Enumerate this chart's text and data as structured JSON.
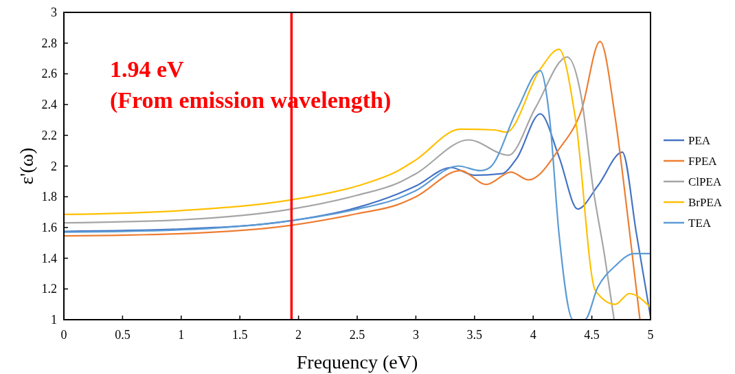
{
  "chart_data": {
    "type": "line",
    "xlabel": "Frequency (eV)",
    "ylabel": "ε'(ω)",
    "xlim": [
      0,
      5
    ],
    "ylim": [
      1,
      3
    ],
    "xticks": [
      0,
      0.5,
      1,
      1.5,
      2,
      2.5,
      3,
      3.5,
      4,
      4.5,
      5
    ],
    "yticks": [
      1,
      1.2,
      1.4,
      1.6,
      1.8,
      2,
      2.2,
      2.4,
      2.6,
      2.8,
      3
    ],
    "grid": false,
    "legend": "right",
    "marker": "none",
    "line_style": "solid",
    "series": [
      {
        "name": "PEA",
        "color": "#4472c4",
        "x": [
          0,
          1,
          1.94,
          2.5,
          2.85,
          3,
          3.3,
          3.5,
          3.73,
          3.86,
          4.06,
          4.22,
          4.38,
          4.55,
          4.76,
          4.88,
          5
        ],
        "values": [
          1.575,
          1.59,
          1.645,
          1.73,
          1.82,
          1.87,
          1.99,
          1.94,
          1.95,
          2.05,
          2.34,
          2.06,
          1.72,
          1.87,
          2.09,
          1.56,
          1.02
        ]
      },
      {
        "name": "FPEA",
        "color": "#ed7d31",
        "x": [
          0,
          1,
          1.94,
          2.5,
          2.85,
          3,
          3.38,
          3.6,
          3.81,
          3.96,
          4.22,
          4.41,
          4.57,
          4.7,
          4.8,
          4.91
        ],
        "values": [
          1.545,
          1.56,
          1.615,
          1.69,
          1.75,
          1.8,
          1.97,
          1.88,
          1.96,
          1.91,
          2.11,
          2.36,
          2.81,
          2.31,
          1.71,
          1.0
        ]
      },
      {
        "name": "ClPEA",
        "color": "#a5a5a5",
        "x": [
          0,
          1,
          1.94,
          2.5,
          2.85,
          3,
          3.45,
          3.79,
          4.02,
          4.29,
          4.41,
          4.51,
          4.61,
          4.69
        ],
        "values": [
          1.63,
          1.65,
          1.72,
          1.81,
          1.89,
          1.95,
          2.17,
          2.07,
          2.38,
          2.71,
          2.45,
          1.86,
          1.41,
          1.0
        ]
      },
      {
        "name": "BrPEA",
        "color": "#ffc000",
        "x": [
          0,
          1,
          1.94,
          2.5,
          2.85,
          3,
          3.38,
          3.67,
          3.77,
          4.06,
          4.22,
          4.36,
          4.53,
          4.7,
          4.82,
          5
        ],
        "values": [
          1.685,
          1.71,
          1.78,
          1.87,
          1.97,
          2.04,
          2.24,
          2.235,
          2.22,
          2.63,
          2.76,
          2.31,
          1.19,
          1.1,
          1.17,
          1.08
        ]
      },
      {
        "name": "TEA",
        "color": "#5b9bd5",
        "x": [
          0,
          1,
          1.94,
          2.5,
          2.85,
          3,
          3.36,
          3.55,
          3.63,
          3.86,
          4.06,
          4.14,
          4.22,
          4.34,
          4.44,
          4.55,
          4.7,
          4.86,
          5
        ],
        "values": [
          1.57,
          1.585,
          1.645,
          1.72,
          1.79,
          1.84,
          2.0,
          1.97,
          1.99,
          2.36,
          2.62,
          2.31,
          1.56,
          1.0,
          1.0,
          1.21,
          1.35,
          1.43,
          1.43
        ]
      }
    ],
    "ref_lines": [
      {
        "axis": "x",
        "value": 1.94,
        "color": "#ff0000"
      }
    ],
    "annotations": [
      "1.94 eV",
      "(From emission wavelength)"
    ]
  }
}
